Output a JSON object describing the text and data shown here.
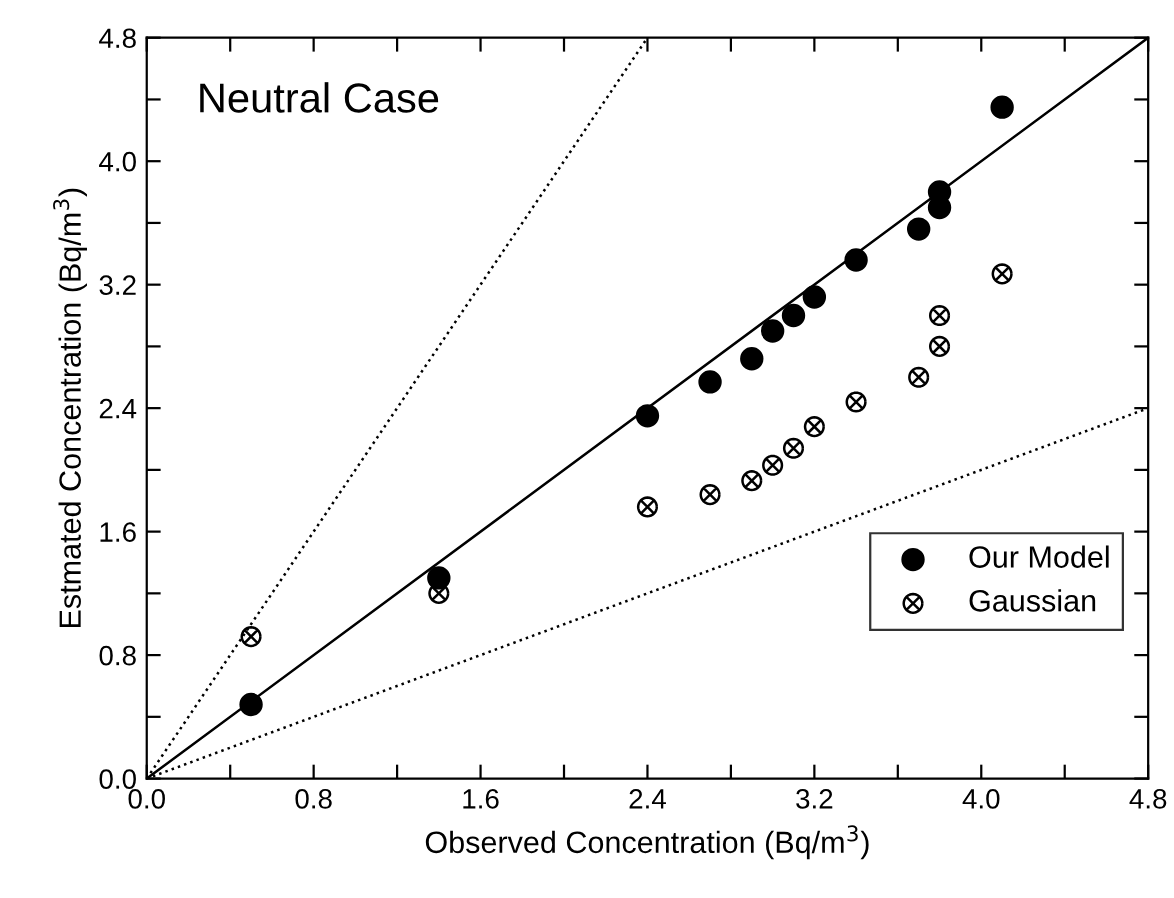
{
  "chart_data": {
    "type": "scatter",
    "xlabel": "Observed Concentration (Bq/m$^{3}$)",
    "ylabel": "Estmated Concentration (Bq/m$^{3}$)",
    "annotations": [
      "Neutral Case"
    ],
    "xlim": [
      0,
      4.8
    ],
    "ylim": [
      0,
      4.8
    ],
    "xticks": [
      {
        "value": 0,
        "label": "0.0"
      },
      {
        "value": 0.4,
        "label": null
      },
      {
        "value": 0.8,
        "label": "0.8"
      },
      {
        "value": 1.2,
        "label": null
      },
      {
        "value": 1.6,
        "label": "1.6"
      },
      {
        "value": 2.0,
        "label": null
      },
      {
        "value": 2.4,
        "label": "2.4"
      },
      {
        "value": 2.8,
        "label": null
      },
      {
        "value": 3.2,
        "label": "3.2"
      },
      {
        "value": 3.6,
        "label": null
      },
      {
        "value": 4.0,
        "label": "4.0"
      },
      {
        "value": 4.4,
        "label": null
      },
      {
        "value": 4.8,
        "label": "4.8"
      }
    ],
    "yticks": [
      {
        "value": 0,
        "label": "0.0"
      },
      {
        "value": 0.4,
        "label": null
      },
      {
        "value": 0.8,
        "label": "0.8"
      },
      {
        "value": 1.2,
        "label": null
      },
      {
        "value": 1.6,
        "label": "1.6"
      },
      {
        "value": 2.0,
        "label": null
      },
      {
        "value": 2.4,
        "label": "2.4"
      },
      {
        "value": 2.8,
        "label": null
      },
      {
        "value": 3.2,
        "label": "3.2"
      },
      {
        "value": 3.6,
        "label": null
      },
      {
        "value": 4.0,
        "label": "4.0"
      },
      {
        "value": 4.4,
        "label": null
      },
      {
        "value": 4.8,
        "label": "4.8"
      }
    ],
    "grid": false,
    "legend": "bottom right",
    "series": [
      {
        "type": "line",
        "color": "#000000",
        "line_style": "solid",
        "marker": "none",
        "x": [
          0,
          4.8
        ],
        "values": [
          0,
          4.8
        ]
      },
      {
        "type": "line",
        "color": "#000000",
        "line_style": "dotted",
        "marker": "none",
        "x": [
          0,
          2.4
        ],
        "values": [
          0,
          4.8
        ]
      },
      {
        "type": "line",
        "color": "#000000",
        "line_style": "dotted",
        "marker": "none",
        "x": [
          0,
          4.8
        ],
        "values": [
          0,
          2.4
        ]
      },
      {
        "name": "Our Model",
        "color": "#000000",
        "marker": "circle",
        "x": [
          0.5,
          1.4,
          2.4,
          2.7,
          2.9,
          3.0,
          3.1,
          3.2,
          3.4,
          3.7,
          3.8,
          3.8,
          4.1
        ],
        "values": [
          0.48,
          1.3,
          2.35,
          2.57,
          2.72,
          2.9,
          3.0,
          3.12,
          3.36,
          3.56,
          3.7,
          3.8,
          4.35
        ]
      },
      {
        "name": "Gaussian",
        "color": "#000000",
        "marker": "cross",
        "x": [
          0.5,
          1.4,
          2.4,
          2.7,
          2.9,
          3.0,
          3.1,
          3.2,
          3.4,
          3.7,
          3.8,
          3.8,
          4.1
        ],
        "values": [
          0.92,
          1.2,
          1.76,
          1.84,
          1.93,
          2.03,
          2.14,
          2.28,
          2.44,
          2.6,
          2.8,
          3.0,
          3.27
        ]
      }
    ]
  }
}
